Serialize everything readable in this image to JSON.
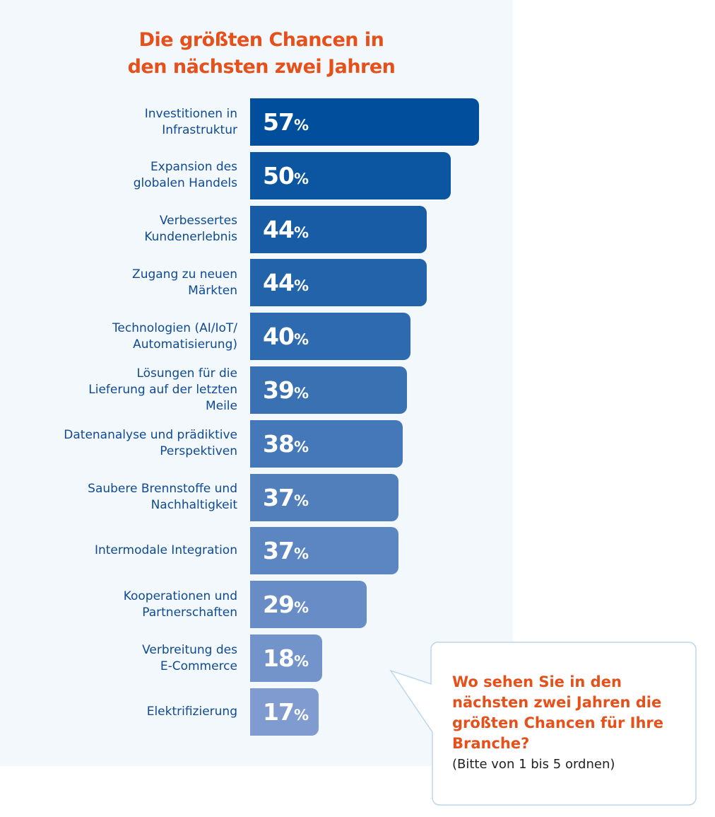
{
  "chart_data": {
    "type": "bar",
    "orientation": "horizontal",
    "title": "Die größten Chancen in den nächsten zwei Jahren",
    "title_lines": [
      "Die größten Chancen in",
      "den nächsten zwei Jahren"
    ],
    "categories": [
      [
        "Investitionen in",
        "Infrastruktur"
      ],
      [
        "Expansion des",
        "globalen Handels"
      ],
      [
        "Verbessertes",
        "Kundenerlebnis"
      ],
      [
        "Zugang zu neuen",
        "Märkten"
      ],
      [
        "Technologien (AI/IoT/",
        "Automatisierung)"
      ],
      [
        "Lösungen für die",
        "Lieferung auf der letzten",
        "Meile"
      ],
      [
        "Datenanalyse und prädiktive",
        "Perspektiven"
      ],
      [
        "Saubere Brennstoffe und",
        "Nachhaltigkeit"
      ],
      [
        "Intermodale Integration"
      ],
      [
        "Kooperationen und",
        "Partnerschaften"
      ],
      [
        "Verbreitung des",
        "E-Commerce"
      ],
      [
        "Elektrifizierung"
      ]
    ],
    "values": [
      57,
      50,
      44,
      44,
      40,
      39,
      38,
      37,
      37,
      29,
      18,
      17
    ],
    "unit": "%",
    "xlim": [
      0,
      57
    ],
    "colors": {
      "start": "#004e9c",
      "end": "#7f9bcf",
      "title": "#e5501b",
      "label": "#0e4a92"
    }
  },
  "callout": {
    "question": "Wo sehen Sie in den nächsten zwei Jahren die größten Chancen für Ihre Branche?",
    "hint": "(Bitte von 1 bis 5 ordnen)"
  }
}
